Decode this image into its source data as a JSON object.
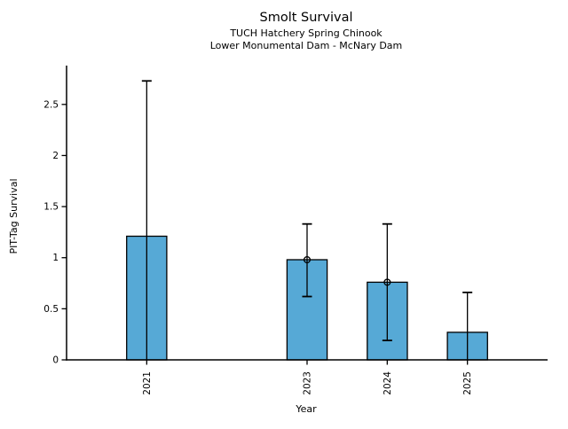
{
  "chart_data": {
    "type": "bar",
    "title": "Smolt Survival",
    "subtitle": [
      "TUCH Hatchery Spring Chinook",
      "Lower Monumental Dam - McNary Dam"
    ],
    "xlabel": "Year",
    "ylabel": "PIT-Tag Survival",
    "x": [
      2021,
      2023,
      2024,
      2025
    ],
    "values": [
      1.21,
      0.98,
      0.76,
      0.27
    ],
    "error_upper": [
      2.73,
      1.33,
      1.33,
      0.66
    ],
    "error_lower": [
      null,
      0.62,
      0.19,
      null
    ],
    "error_lower_clipped": [
      true,
      false,
      false,
      true
    ],
    "point_markers": [
      false,
      true,
      true,
      false
    ],
    "xtick_labels": [
      "2021",
      "2023",
      "2024",
      "2025"
    ],
    "ytick_labels": [
      "0",
      "0.5",
      "1",
      "1.5",
      "2",
      "2.5"
    ],
    "ytick_values": [
      0,
      0.5,
      1,
      1.5,
      2,
      2.5
    ],
    "xlim": [
      2020,
      2026
    ],
    "ylim": [
      0,
      2.88
    ],
    "bar_width_years": 0.5,
    "bar_color": "#56a9d6",
    "bar_edge_color": "#000000",
    "error_color": "#000000",
    "axis_color": "#000000",
    "background": "#ffffff",
    "grid": false,
    "legend": null
  }
}
